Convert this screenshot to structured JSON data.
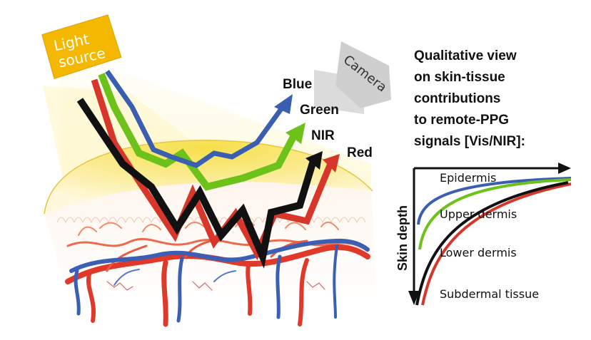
{
  "light_source": {
    "line1": "Light",
    "line2": "source",
    "color": "#f5b800"
  },
  "camera": {
    "label": "Camera",
    "color": "#cfcfcf"
  },
  "beams": [
    {
      "name": "Blue",
      "color": "#3a5fb0"
    },
    {
      "name": "Green",
      "color": "#6cc21a"
    },
    {
      "name": "NIR",
      "color": "#111111"
    },
    {
      "name": "Red",
      "color": "#d8362a"
    }
  ],
  "title": {
    "line1": "Qualitative view",
    "line2": "on skin-tissue",
    "line3": "contributions",
    "line4": "to remote-PPG",
    "line5": "signals [Vis/NIR]:"
  },
  "depth_chart": {
    "y_axis_label": "Skin depth",
    "layers": [
      "Epidermis",
      "Upper dermis",
      "Lower dermis",
      "Subdermal tissue"
    ]
  }
}
